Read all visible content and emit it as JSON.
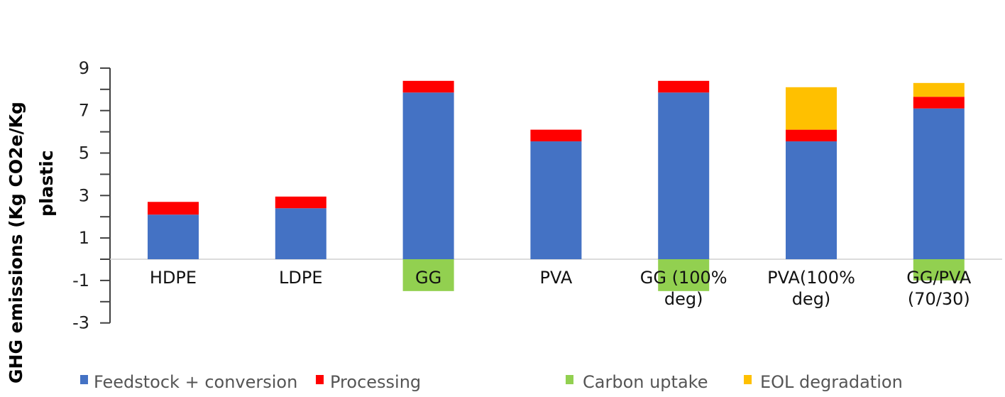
{
  "chart_data": {
    "type": "bar",
    "stacked": true,
    "title": "",
    "xlabel": "",
    "ylabel": "GHG emissions (Kg CO2e/Kg plastic",
    "ylabel_lines": [
      "GHG emissions (Kg CO2e/Kg",
      "plastic"
    ],
    "ylim": [
      -3,
      9
    ],
    "yticks": [
      9,
      7,
      5,
      3,
      1,
      -1,
      -3
    ],
    "grid": false,
    "legend_position": "bottom",
    "categories": [
      "HDPE",
      "LDPE",
      "GG",
      "PVA",
      "GG (100% deg)",
      "PVA(100% deg)",
      "GG/PVA (70/30)"
    ],
    "category_lines": [
      [
        "HDPE"
      ],
      [
        "LDPE"
      ],
      [
        "GG"
      ],
      [
        "PVA"
      ],
      [
        "GG (100%",
        "deg)"
      ],
      [
        "PVA(100%",
        "deg)"
      ],
      [
        "GG/PVA",
        "(70/30)"
      ]
    ],
    "series": [
      {
        "name": "Feedstock + conversion",
        "color": "#4472C4",
        "values": [
          2.1,
          2.4,
          7.85,
          5.55,
          7.85,
          5.55,
          7.1
        ]
      },
      {
        "name": "Processing",
        "color": "#FF0000",
        "values": [
          0.6,
          0.55,
          0.55,
          0.55,
          0.55,
          0.55,
          0.55
        ]
      },
      {
        "name": "Carbon uptake",
        "color": "#92D050",
        "values": [
          0,
          0,
          -1.5,
          0,
          -1.5,
          0,
          -1.0
        ]
      },
      {
        "name": "EOL degradation",
        "color": "#FFC000",
        "values": [
          0,
          0,
          0,
          0,
          0,
          2.0,
          0.65
        ]
      }
    ]
  },
  "legend": {
    "items": [
      {
        "label": "Feedstock + conversion",
        "color": "#4472C4"
      },
      {
        "label": "Processing",
        "color": "#FF0000"
      },
      {
        "label": "Carbon uptake",
        "color": "#92D050"
      },
      {
        "label": "EOL degradation",
        "color": "#FFC000"
      }
    ]
  }
}
